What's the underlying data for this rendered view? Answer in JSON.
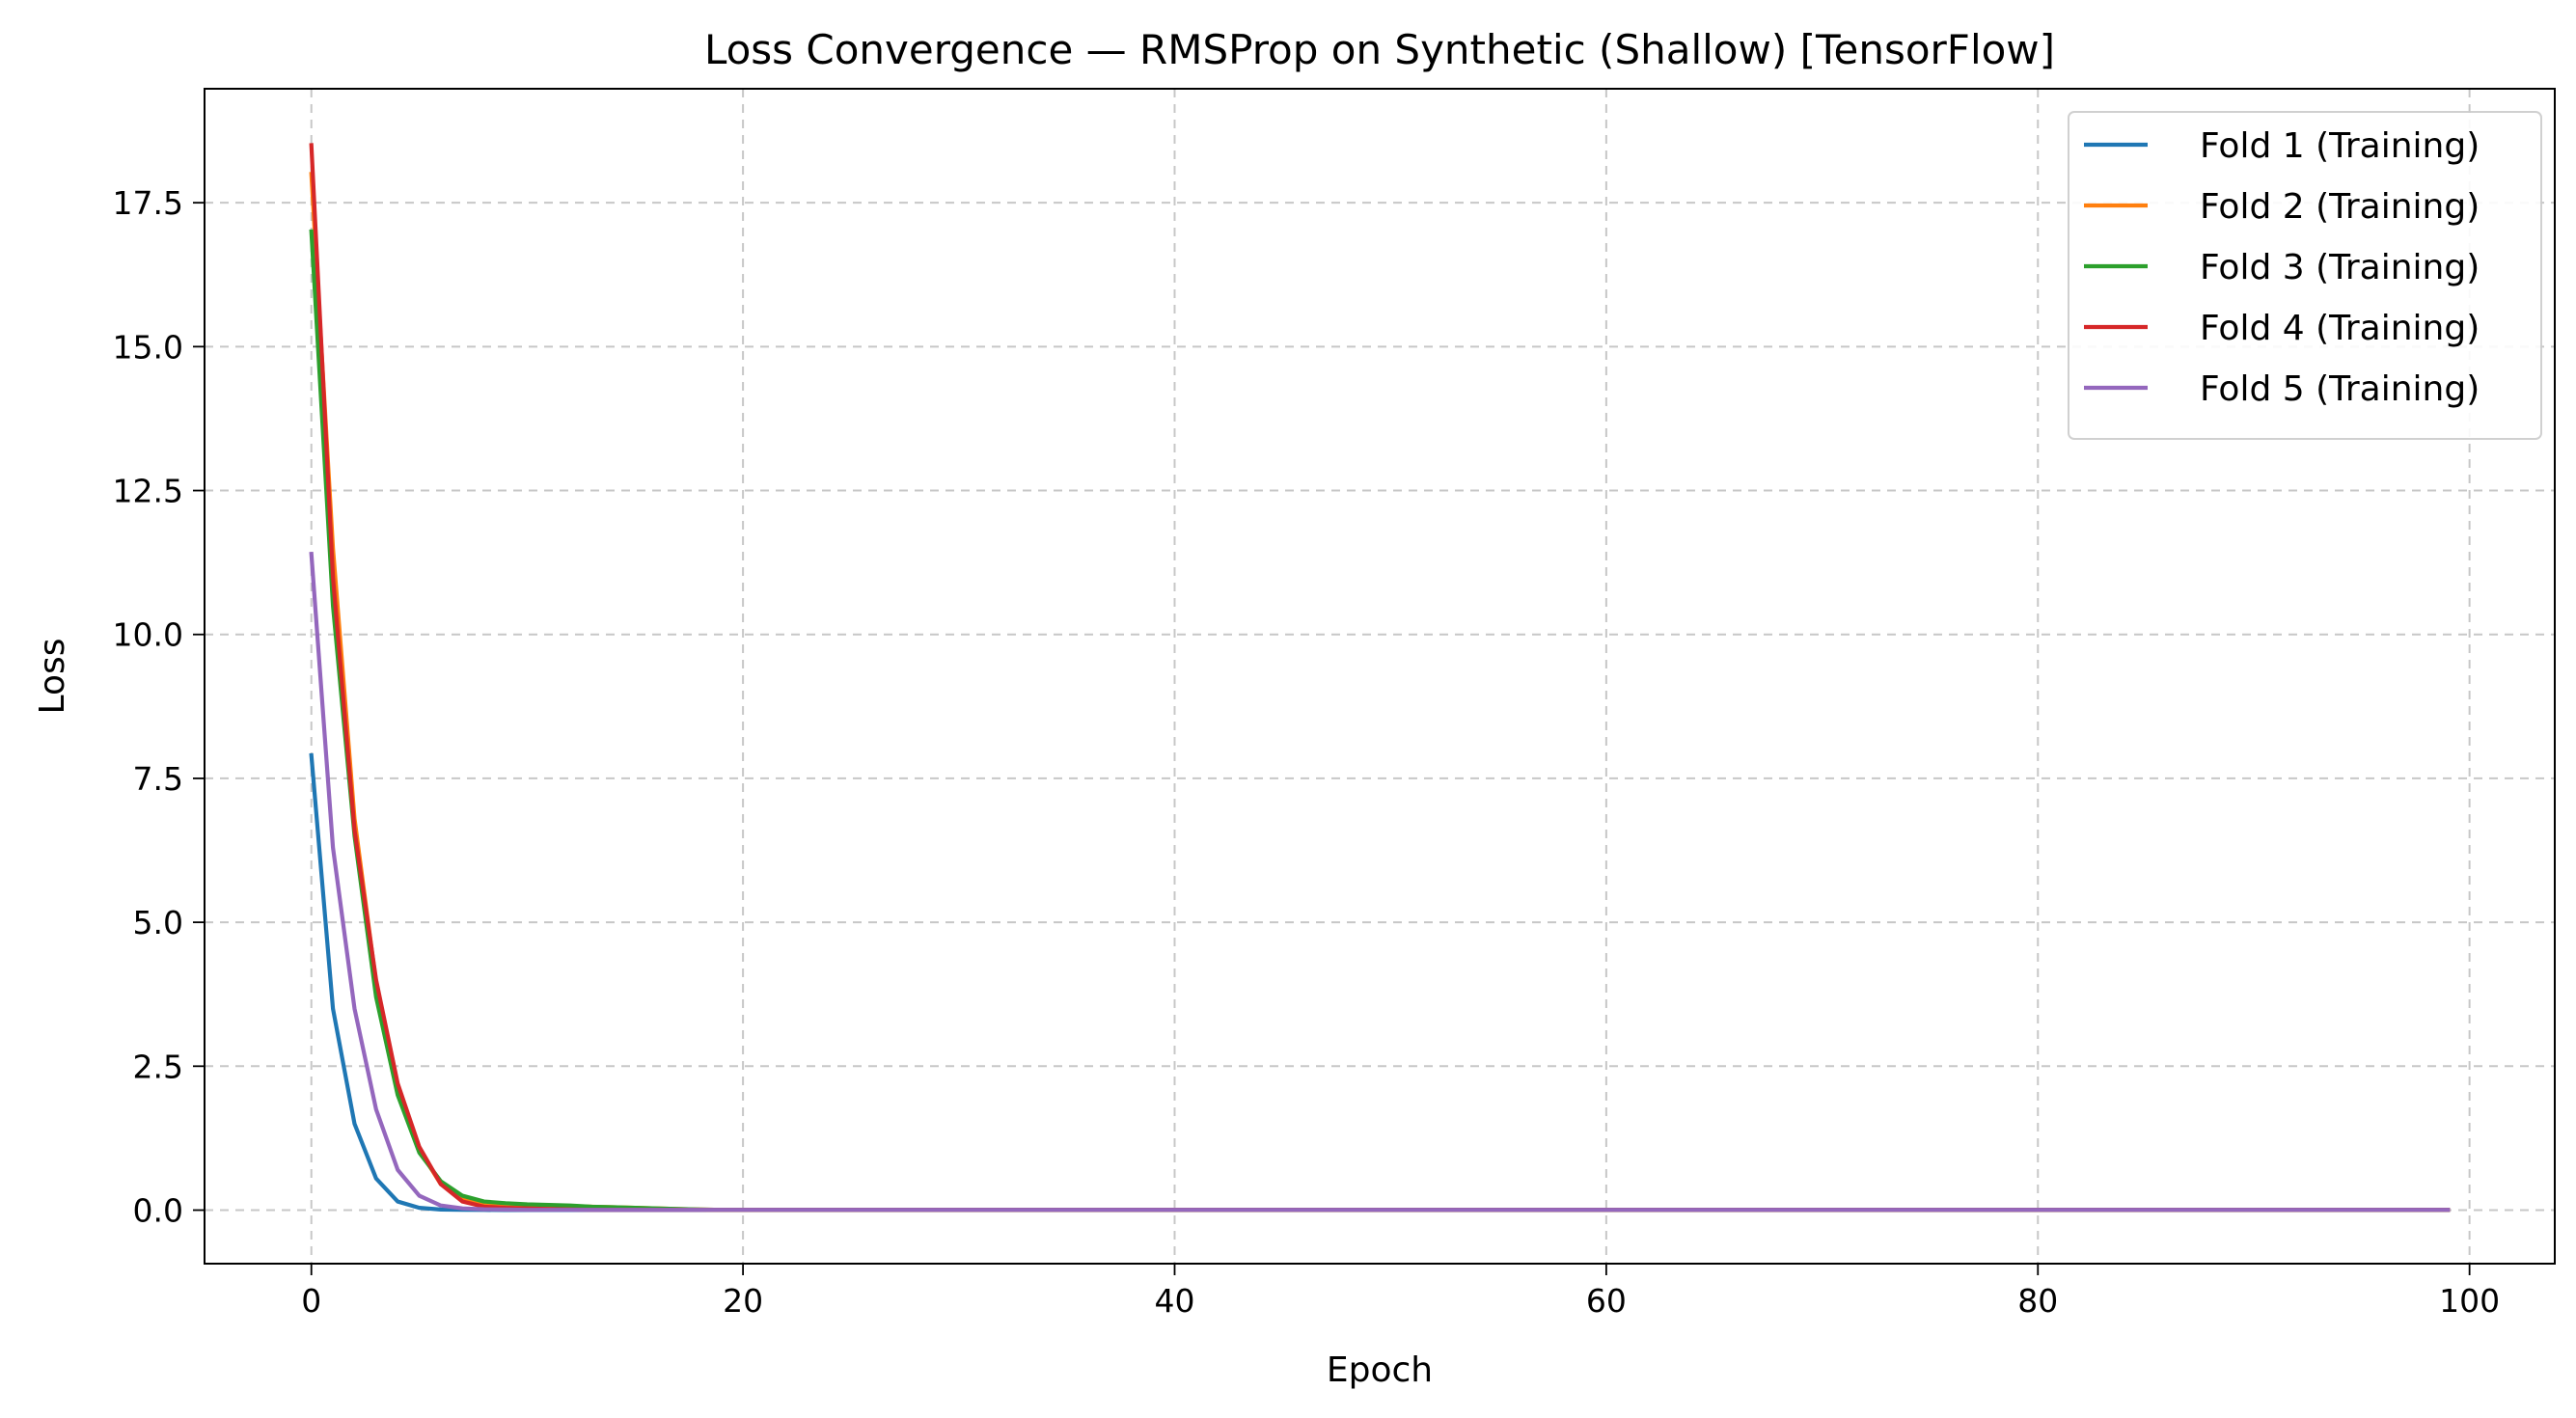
{
  "chart_data": {
    "type": "line",
    "title": "Loss Convergence — RMSProp on Synthetic (Shallow) [TensorFlow]",
    "xlabel": "Epoch",
    "ylabel": "Loss",
    "xlim": [
      -4.95,
      103.95
    ],
    "ylim": [
      -0.93,
      19.48
    ],
    "x_ticks": [
      0,
      20,
      40,
      60,
      80,
      100
    ],
    "x_tick_labels": [
      "0",
      "20",
      "40",
      "60",
      "80",
      "100"
    ],
    "y_ticks": [
      0.0,
      2.5,
      5.0,
      7.5,
      10.0,
      12.5,
      15.0,
      17.5
    ],
    "y_tick_labels": [
      "0.0",
      "2.5",
      "5.0",
      "7.5",
      "10.0",
      "12.5",
      "15.0",
      "17.5"
    ],
    "grid": true,
    "legend_position": "top-right",
    "epochs": 100,
    "series": [
      {
        "name": "Fold 1 (Training)",
        "color": "#1f77b4",
        "head": [
          7.9,
          3.5,
          1.5,
          0.55,
          0.15,
          0.04,
          0.01,
          0.005,
          0.003,
          0.002
        ],
        "tail": 0.001
      },
      {
        "name": "Fold 2 (Training)",
        "color": "#ff7f0e",
        "head": [
          18.0,
          11.5,
          6.8,
          3.95,
          2.15,
          1.05,
          0.45,
          0.2,
          0.12,
          0.1,
          0.09,
          0.08,
          0.07,
          0.06,
          0.05,
          0.04,
          0.03,
          0.02,
          0.01
        ],
        "tail": 0.005
      },
      {
        "name": "Fold 3 (Training)",
        "color": "#2ca02c",
        "head": [
          17.0,
          10.5,
          6.5,
          3.7,
          2.0,
          1.0,
          0.5,
          0.25,
          0.15,
          0.12,
          0.1,
          0.09,
          0.08,
          0.06,
          0.05,
          0.04,
          0.03,
          0.02,
          0.01
        ],
        "tail": 0.005
      },
      {
        "name": "Fold 4 (Training)",
        "color": "#d62728",
        "head": [
          18.5,
          11.0,
          6.6,
          4.0,
          2.2,
          1.1,
          0.45,
          0.15,
          0.06,
          0.04,
          0.03,
          0.02,
          0.01
        ],
        "tail": 0.005
      },
      {
        "name": "Fold 5 (Training)",
        "color": "#9467bd",
        "head": [
          11.4,
          6.3,
          3.5,
          1.75,
          0.7,
          0.25,
          0.08,
          0.03,
          0.015,
          0.01
        ],
        "tail": 0.005
      }
    ]
  }
}
